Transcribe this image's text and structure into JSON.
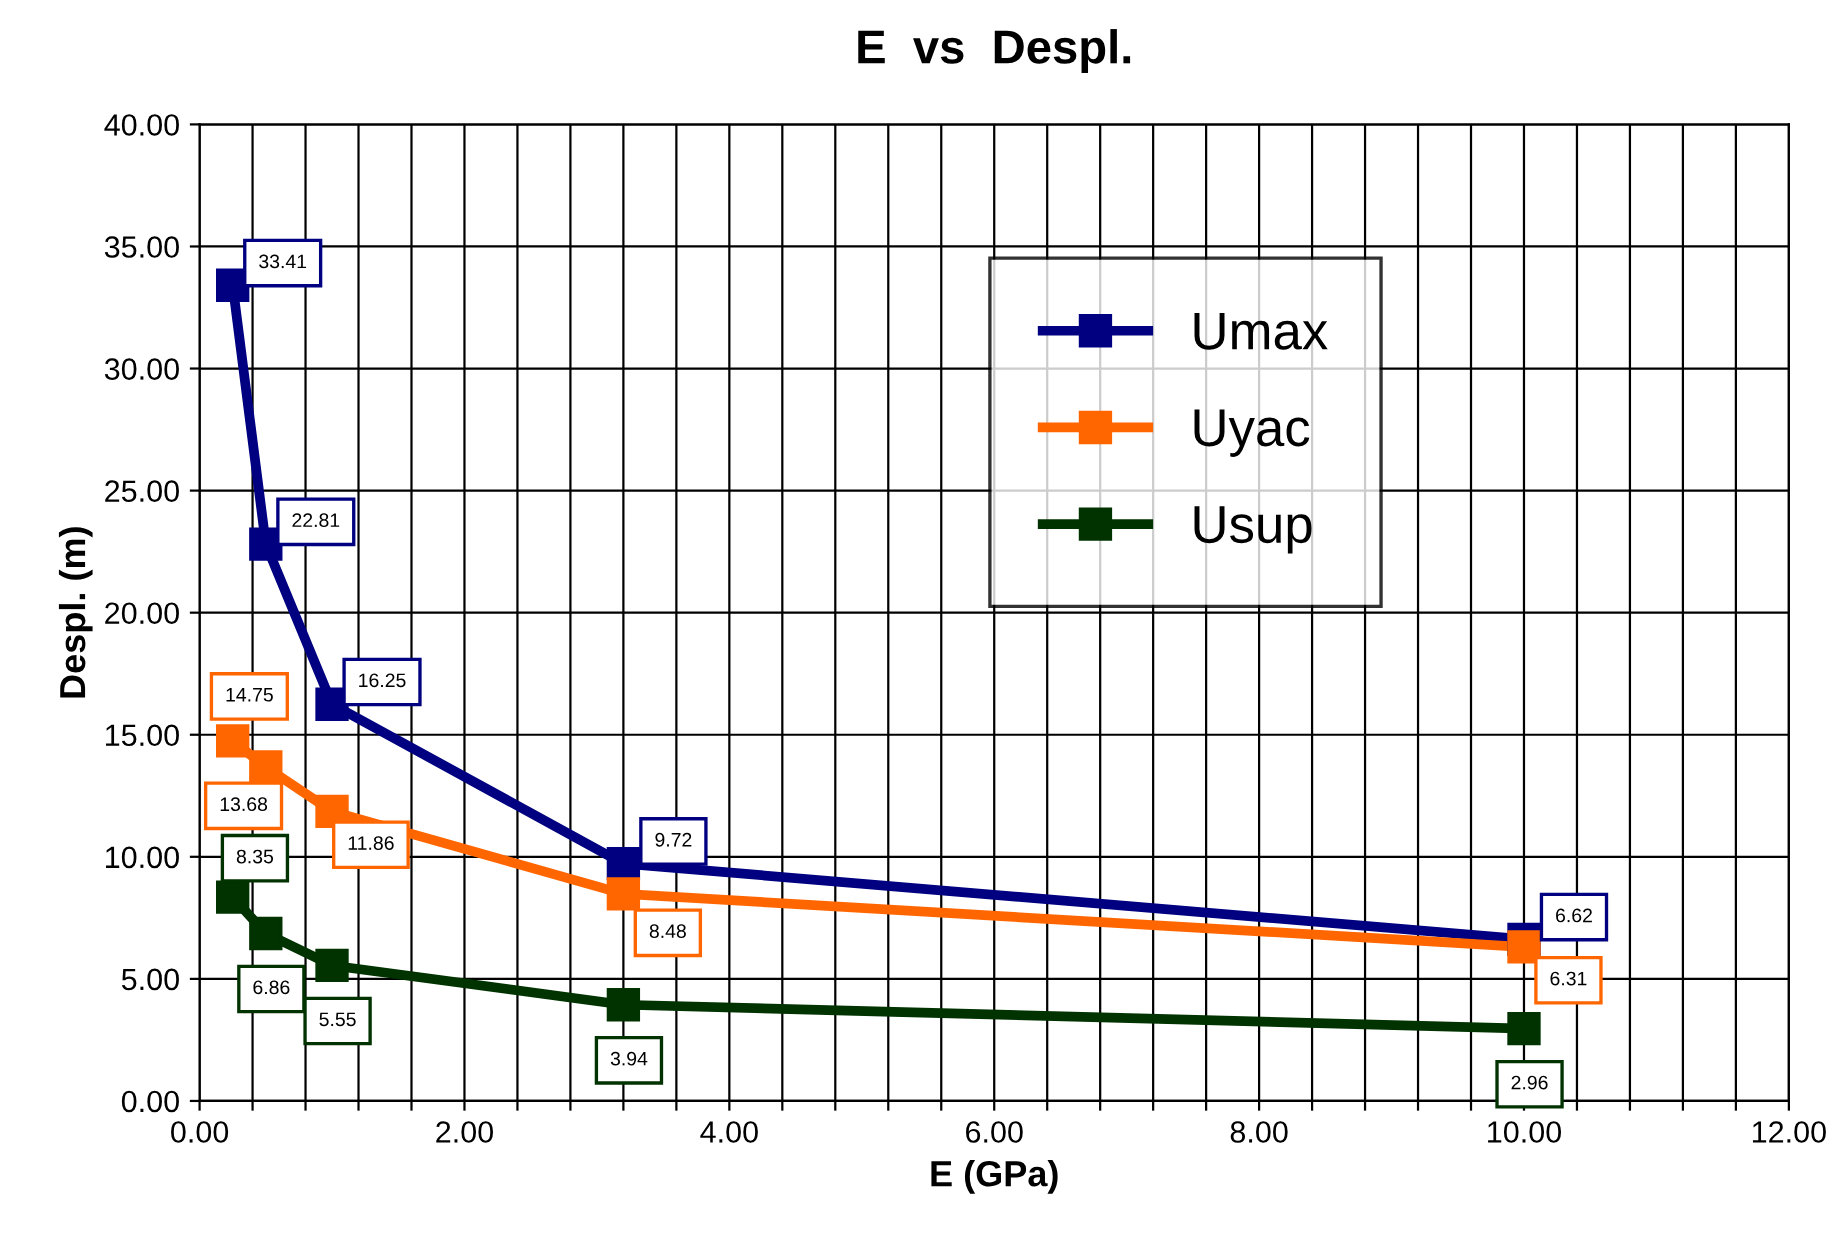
{
  "chart_data": {
    "type": "line",
    "title": "E  vs  Despl.",
    "xlabel": "E (GPa)",
    "ylabel": "Despl. (m)",
    "x": [
      0.25,
      0.5,
      1.0,
      3.2,
      10.0
    ],
    "series": [
      {
        "name": "Umax",
        "color": "#000080",
        "values": [
          33.41,
          22.81,
          16.25,
          9.72,
          6.62
        ],
        "value_labels": [
          "33.41",
          "22.81",
          "16.25",
          "9.72",
          "6.62"
        ]
      },
      {
        "name": "Uyac",
        "color": "#ff6600",
        "values": [
          14.75,
          13.68,
          11.86,
          8.48,
          6.31
        ],
        "value_labels": [
          "14.75",
          "13.68",
          "11.86",
          "8.48",
          "6.31"
        ]
      },
      {
        "name": "Usup",
        "color": "#003300",
        "values": [
          8.35,
          6.86,
          5.55,
          3.94,
          2.96
        ],
        "value_labels": [
          "8.35",
          "6.86",
          "5.55",
          "3.94",
          "2.96"
        ]
      }
    ],
    "xlim": [
      0,
      12
    ],
    "ylim": [
      0,
      40
    ],
    "xticks": [
      {
        "value": 0,
        "label": "0.00"
      },
      {
        "value": 0.4,
        "label": null
      },
      {
        "value": 0.8,
        "label": null
      },
      {
        "value": 1.2,
        "label": null
      },
      {
        "value": 1.6,
        "label": null
      },
      {
        "value": 2,
        "label": "2.00"
      },
      {
        "value": 2.4,
        "label": null
      },
      {
        "value": 2.8,
        "label": null
      },
      {
        "value": 3.2,
        "label": null
      },
      {
        "value": 3.6,
        "label": null
      },
      {
        "value": 4,
        "label": "4.00"
      },
      {
        "value": 4.4,
        "label": null
      },
      {
        "value": 4.8,
        "label": null
      },
      {
        "value": 5.2,
        "label": null
      },
      {
        "value": 5.6,
        "label": null
      },
      {
        "value": 6,
        "label": "6.00"
      },
      {
        "value": 6.4,
        "label": null
      },
      {
        "value": 6.8,
        "label": null
      },
      {
        "value": 7.2,
        "label": null
      },
      {
        "value": 7.6,
        "label": null
      },
      {
        "value": 8,
        "label": "8.00"
      },
      {
        "value": 8.4,
        "label": null
      },
      {
        "value": 8.8,
        "label": null
      },
      {
        "value": 9.2,
        "label": null
      },
      {
        "value": 9.6,
        "label": null
      },
      {
        "value": 10,
        "label": "10.00"
      },
      {
        "value": 10.4,
        "label": null
      },
      {
        "value": 10.8,
        "label": null
      },
      {
        "value": 11.2,
        "label": null
      },
      {
        "value": 11.6,
        "label": null
      },
      {
        "value": 12,
        "label": "12.00"
      }
    ],
    "yticks": [
      {
        "value": 0,
        "label": "0.00"
      },
      {
        "value": 5,
        "label": "5.00"
      },
      {
        "value": 10,
        "label": "10.00"
      },
      {
        "value": 15,
        "label": "15.00"
      },
      {
        "value": 20,
        "label": "20.00"
      },
      {
        "value": 25,
        "label": "25.00"
      },
      {
        "value": 30,
        "label": "30.00"
      },
      {
        "value": 35,
        "label": "35.00"
      },
      {
        "value": 40,
        "label": "40.00"
      }
    ],
    "grid": true,
    "legend": "top right",
    "marker": "square",
    "line_style": "solid"
  }
}
